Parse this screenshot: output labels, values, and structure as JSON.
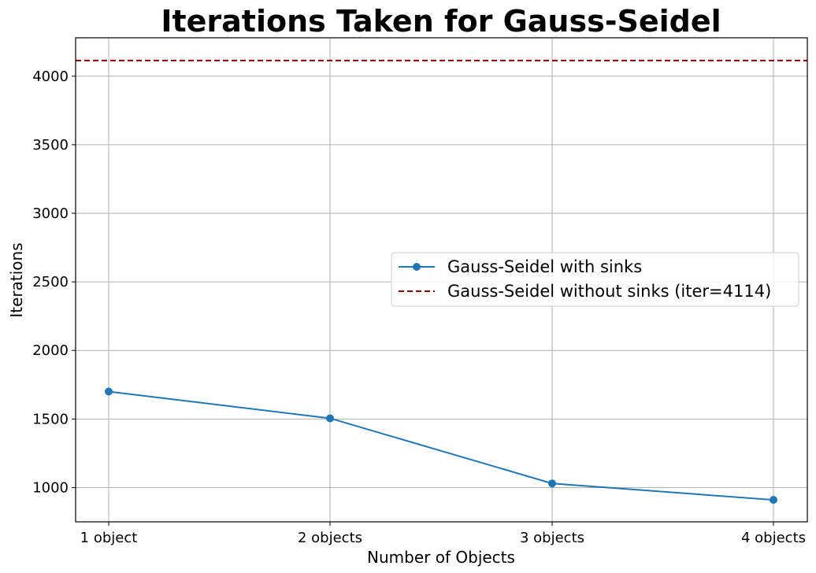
{
  "chart_data": {
    "type": "line",
    "title": "Iterations Taken for Gauss-Seidel",
    "xlabel": "Number of Objects",
    "ylabel": "Iterations",
    "categories": [
      "1 object",
      "2 objects",
      "3 objects",
      "4 objects"
    ],
    "series": [
      {
        "name": "Gauss-Seidel with sinks",
        "values": [
          1700,
          1505,
          1030,
          910
        ],
        "color": "#1f77b4",
        "style": "solid",
        "marker": "circle"
      }
    ],
    "reference_line": {
      "name": "Gauss-Seidel without sinks (iter=4114)",
      "value": 4114,
      "color": "#8b0000",
      "style": "dashed"
    },
    "ylim": [
      750,
      4280
    ],
    "yticks": [
      1000,
      1500,
      2000,
      2500,
      3000,
      3500,
      4000
    ],
    "grid": true,
    "legend_position": "center-right"
  }
}
